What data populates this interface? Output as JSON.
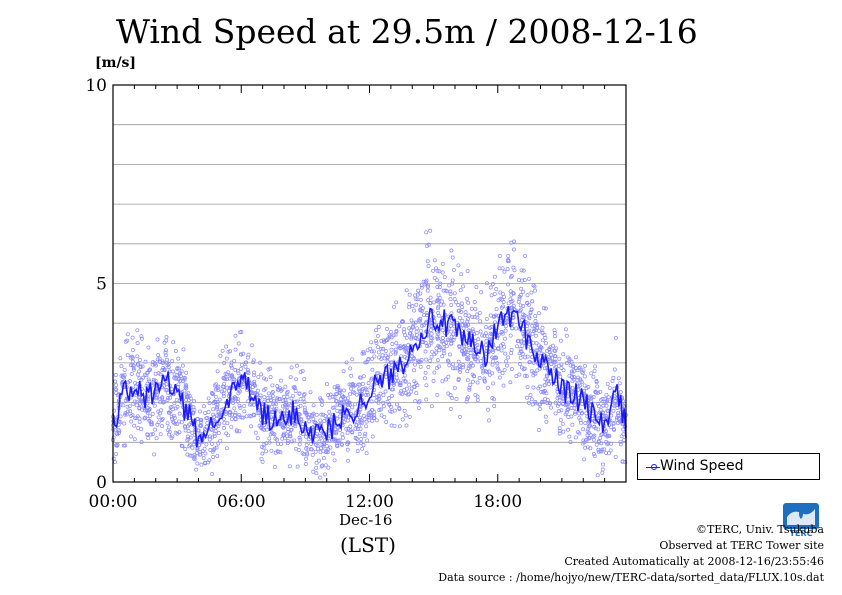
{
  "chart_data": {
    "type": "scatter",
    "title": "Wind Speed at 29.5m / 2008-12-16",
    "ylabel": "[m/s]",
    "ylim": [
      0,
      10
    ],
    "yticks": [
      0,
      5,
      10
    ],
    "xlim": [
      "00:00",
      "24:00"
    ],
    "xticks": [
      "00:00",
      "06:00",
      "12:00",
      "18:00"
    ],
    "xsublabel": "Dec-16",
    "xunit": "(LST)",
    "grid": true,
    "legend": {
      "position": "bottom-right-outside",
      "entries": [
        "Wind Speed"
      ]
    },
    "series": [
      {
        "name": "Wind Speed",
        "color": "#1a1aff",
        "x_hours": [
          0,
          0.5,
          1,
          1.5,
          2,
          2.5,
          3,
          3.5,
          4,
          4.5,
          5,
          5.5,
          6,
          6.5,
          7,
          7.5,
          8,
          8.5,
          9,
          9.5,
          10,
          10.5,
          11,
          11.5,
          12,
          12.5,
          13,
          13.5,
          14,
          14.5,
          15,
          15.5,
          16,
          16.5,
          17,
          17.5,
          18,
          18.5,
          19,
          19.5,
          20,
          20.5,
          21,
          21.5,
          22,
          22.5,
          23,
          23.5,
          24
        ],
        "values": [
          1.5,
          2.2,
          2.4,
          2.1,
          2.3,
          2.6,
          2.2,
          1.7,
          1.1,
          1.3,
          1.9,
          2.1,
          2.6,
          2.2,
          1.7,
          1.5,
          1.5,
          1.8,
          1.4,
          1.2,
          1.3,
          1.5,
          1.8,
          1.9,
          2.3,
          2.5,
          2.7,
          3.0,
          3.4,
          3.9,
          4.1,
          4.0,
          3.8,
          3.5,
          3.4,
          3.2,
          3.9,
          4.3,
          4.0,
          3.5,
          3.1,
          2.8,
          2.3,
          2.2,
          2.0,
          1.7,
          1.3,
          2.3,
          1.4
        ]
      }
    ]
  },
  "footer": {
    "copyright": "©TERC, Univ. Tsukuba",
    "observed": "Observed at TERC Tower site",
    "created": "Created Automatically at 2008-12-16/23:55:46",
    "source": "Data source : /home/hojyo/new/TERC-data/sorted_data/FLUX.10s.dat"
  },
  "logo": {
    "text": "TERC",
    "color": "#1e6fc0"
  }
}
